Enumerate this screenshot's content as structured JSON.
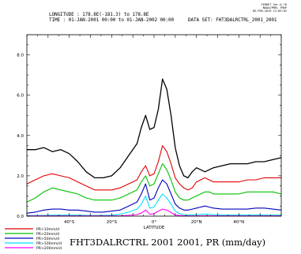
{
  "header": {
    "line1": "LONGITUDE : 178.8E(-181.3) to 178.8E",
    "line2": "TIME : 01-JAN-2001 00:00 to 01-JAN-2002 00:00",
    "dataset": "DATA SET: FHT3DALRCTRL_2001_2001",
    "stamp": [
      "FERRET  Ver.6.76",
      "NOAA/PMEL TMAP",
      "05-FEB-2015 21:05:02"
    ]
  },
  "caption": "FHT3DALRCTRL 2001 2001, PR (mm/day)",
  "chart_data": {
    "type": "line",
    "title": "",
    "xlabel": "LATITUDE",
    "ylabel": "",
    "xlim": [
      -60,
      60
    ],
    "ylim": [
      0,
      9
    ],
    "grid": false,
    "legend_position": "bottom-left",
    "x_ticks": [
      {
        "value": -40,
        "label": "40°S"
      },
      {
        "value": -20,
        "label": "20°S"
      },
      {
        "value": 0,
        "label": "0°"
      },
      {
        "value": 20,
        "label": "20°N"
      },
      {
        "value": 40,
        "label": "40°N"
      }
    ],
    "y_ticks": [
      {
        "value": 0,
        "label": "0.0"
      },
      {
        "value": 2,
        "label": "2.0"
      },
      {
        "value": 4,
        "label": "4.0"
      },
      {
        "value": 6,
        "label": "6.0"
      },
      {
        "value": 8,
        "label": "8.0"
      }
    ],
    "x": [
      -60,
      -56,
      -52,
      -48,
      -44,
      -40,
      -36,
      -32,
      -28,
      -24,
      -20,
      -16,
      -12,
      -8,
      -6,
      -4,
      -2,
      0,
      2,
      4,
      6,
      8,
      10,
      12,
      14,
      16,
      18,
      20,
      22,
      24,
      26,
      28,
      32,
      36,
      40,
      44,
      48,
      52,
      56,
      60
    ],
    "series": [
      {
        "name": "",
        "color": "#000000",
        "values": [
          3.3,
          3.3,
          3.4,
          3.2,
          3.3,
          3.1,
          2.7,
          2.2,
          1.9,
          1.9,
          2.0,
          2.4,
          3.0,
          3.6,
          4.4,
          5.0,
          4.3,
          4.4,
          5.3,
          6.8,
          6.3,
          5.0,
          3.4,
          2.5,
          2.0,
          1.9,
          2.2,
          2.4,
          2.3,
          2.2,
          2.3,
          2.4,
          2.5,
          2.6,
          2.6,
          2.6,
          2.7,
          2.7,
          2.8,
          2.9
        ]
      },
      {
        "name": "",
        "color": "#e10000",
        "values": [
          1.6,
          1.8,
          2.0,
          2.1,
          2.0,
          1.9,
          1.7,
          1.5,
          1.3,
          1.3,
          1.3,
          1.4,
          1.6,
          1.8,
          2.2,
          2.5,
          2.0,
          2.1,
          2.7,
          3.5,
          3.2,
          2.6,
          1.9,
          1.6,
          1.4,
          1.3,
          1.4,
          1.7,
          1.8,
          1.9,
          1.8,
          1.7,
          1.7,
          1.7,
          1.7,
          1.8,
          1.8,
          1.9,
          1.9,
          1.9
        ]
      },
      {
        "name": "",
        "color": "#00c000",
        "values": [
          0.7,
          0.9,
          1.2,
          1.4,
          1.3,
          1.2,
          1.1,
          0.9,
          0.8,
          0.8,
          0.8,
          0.9,
          1.1,
          1.3,
          1.7,
          2.0,
          1.5,
          1.6,
          2.1,
          2.6,
          2.3,
          1.8,
          1.2,
          0.9,
          0.8,
          0.8,
          0.9,
          1.0,
          1.1,
          1.2,
          1.2,
          1.1,
          1.1,
          1.1,
          1.1,
          1.2,
          1.2,
          1.2,
          1.2,
          1.1
        ]
      },
      {
        "name": "",
        "color": "#0000c0",
        "values": [
          0.15,
          0.2,
          0.3,
          0.35,
          0.35,
          0.3,
          0.3,
          0.25,
          0.2,
          0.2,
          0.25,
          0.3,
          0.5,
          0.7,
          1.1,
          1.6,
          0.8,
          0.9,
          1.4,
          1.8,
          1.6,
          1.1,
          0.6,
          0.4,
          0.3,
          0.3,
          0.35,
          0.4,
          0.45,
          0.5,
          0.45,
          0.4,
          0.35,
          0.35,
          0.35,
          0.35,
          0.4,
          0.4,
          0.35,
          0.3
        ]
      },
      {
        "name": "",
        "color": "#00e0ff",
        "values": [
          0.03,
          0.03,
          0.04,
          0.05,
          0.05,
          0.05,
          0.05,
          0.04,
          0.03,
          0.04,
          0.05,
          0.1,
          0.2,
          0.35,
          0.6,
          1.0,
          0.4,
          0.45,
          0.8,
          1.1,
          0.9,
          0.6,
          0.25,
          0.12,
          0.08,
          0.06,
          0.07,
          0.08,
          0.09,
          0.1,
          0.09,
          0.08,
          0.06,
          0.06,
          0.06,
          0.06,
          0.06,
          0.06,
          0.05,
          0.05
        ]
      },
      {
        "name": "",
        "color": "#ff00ff",
        "values": [
          0.01,
          0.01,
          0.01,
          0.01,
          0.01,
          0.01,
          0.01,
          0.01,
          0.01,
          0.01,
          0.01,
          0.02,
          0.04,
          0.08,
          0.15,
          0.3,
          0.1,
          0.12,
          0.25,
          0.35,
          0.3,
          0.18,
          0.06,
          0.03,
          0.02,
          0.01,
          0.01,
          0.02,
          0.02,
          0.02,
          0.02,
          0.02,
          0.01,
          0.01,
          0.01,
          0.01,
          0.01,
          0.01,
          0.01,
          0.01
        ]
      }
    ],
    "legend": [
      {
        "label": "PR>10mm/d",
        "color": "#e10000"
      },
      {
        "label": "PR>20mm/d",
        "color": "#00c000"
      },
      {
        "label": "PR>50mm/d",
        "color": "#0000c0"
      },
      {
        "label": "PR>100mm/d",
        "color": "#00e0ff"
      },
      {
        "label": "PR>200mm/d",
        "color": "#ff00ff"
      }
    ]
  }
}
